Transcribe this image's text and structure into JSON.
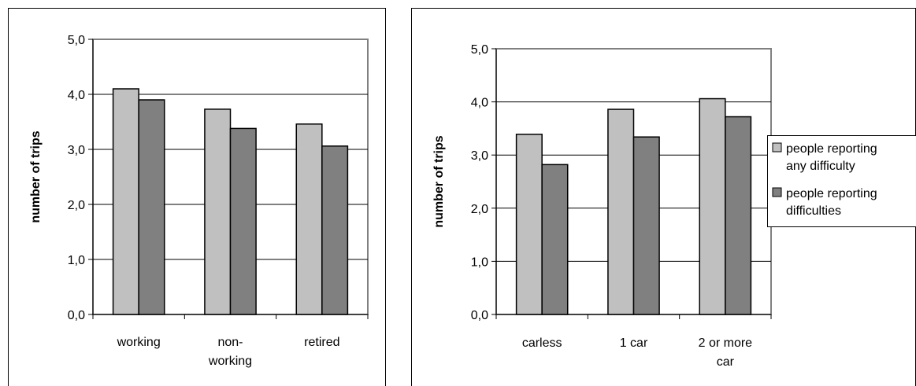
{
  "chart_data": [
    {
      "type": "bar",
      "categories": [
        [
          "working"
        ],
        [
          "non-",
          "working"
        ],
        [
          "retired"
        ]
      ],
      "series": [
        {
          "values": [
            4.1,
            3.73,
            3.46
          ],
          "color": "#c0c0c0"
        },
        {
          "values": [
            3.9,
            3.38,
            3.06
          ],
          "color": "#808080"
        }
      ],
      "ylabel": "number of trips",
      "ylim": [
        0,
        5
      ],
      "yticks": [
        "0,0",
        "1,0",
        "2,0",
        "3,0",
        "4,0",
        "5,0"
      ],
      "grid": true
    },
    {
      "type": "bar",
      "categories": [
        [
          "carless"
        ],
        [
          "1 car"
        ],
        [
          "2 or more",
          "car"
        ]
      ],
      "series": [
        {
          "name": "people reporting any difficulty",
          "name_lines": [
            "people reporting",
            "any difficulty"
          ],
          "values": [
            3.39,
            3.86,
            4.06
          ],
          "color": "#c0c0c0"
        },
        {
          "name": "people reporting difficulties",
          "name_lines": [
            "people reporting",
            "difficulties"
          ],
          "values": [
            2.82,
            3.34,
            3.72
          ],
          "color": "#808080"
        }
      ],
      "ylabel": "number of trips",
      "ylim": [
        0,
        5
      ],
      "yticks": [
        "0,0",
        "1,0",
        "2,0",
        "3,0",
        "4,0",
        "5,0"
      ],
      "grid": true,
      "legend": "right"
    }
  ]
}
